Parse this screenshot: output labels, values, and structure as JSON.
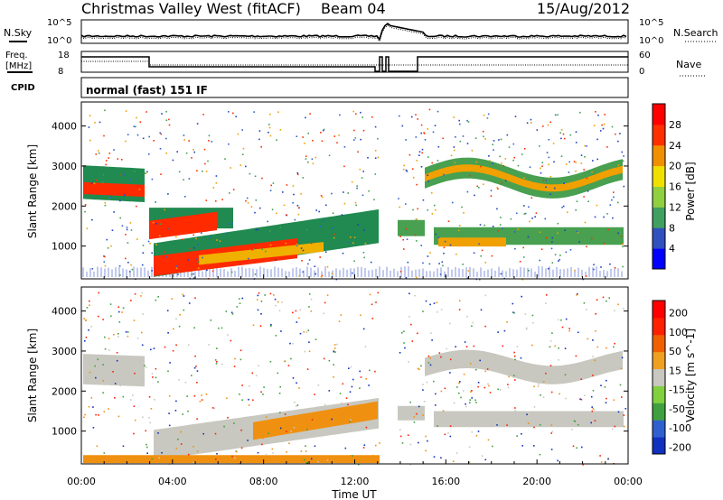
{
  "header": {
    "station": "Christmas Valley West (fitACF)",
    "beam": "Beam 04",
    "date": "15/Aug/2012"
  },
  "strips": {
    "nsky_label": "N.Sky",
    "nsearch_label": "N.Search",
    "nsky_tick_top": "10^5",
    "nsky_tick_bottom": "10^0",
    "freq_label_1": "Freq.",
    "freq_label_2": "[MHz]",
    "freq_tick_top": "18",
    "freq_tick_bottom": "8",
    "nave_label": "Nave",
    "nave_tick_top": "60",
    "nave_tick_bottom": "0",
    "cpid_label": "CPID",
    "cpid_value": "normal (fast) 151 IF"
  },
  "colors": {
    "velocity_ground": "#c8c8c0",
    "velocity_neg": "#f09010",
    "power_high": "#ff2000",
    "power_mid": "#f0b000",
    "power_low": "#208040",
    "power_floor": "#2040c0"
  },
  "chart_data": [
    {
      "type": "heatmap",
      "panel": "power",
      "ylabel": "Slant Range [km]",
      "xlabel": "",
      "xlim": [
        "00:00",
        "00:00"
      ],
      "ylim": [
        180,
        4600
      ],
      "yticks": [
        "1000",
        "2000",
        "3000",
        "4000"
      ],
      "colorbar": {
        "label": "Power [dB]",
        "ticks": [
          "4",
          "8",
          "12",
          "16",
          "20",
          "24",
          "28"
        ],
        "colors": [
          "#0000ff",
          "#3050c0",
          "#40a060",
          "#90d040",
          "#f0e000",
          "#f09000",
          "#ff3000",
          "#ff0000"
        ]
      }
    },
    {
      "type": "heatmap",
      "panel": "velocity",
      "ylabel": "Slant Range [km]",
      "xlabel": "Time UT",
      "xlim": [
        "00:00",
        "00:00"
      ],
      "ylim": [
        180,
        4600
      ],
      "xticks": [
        "00:00",
        "04:00",
        "08:00",
        "12:00",
        "16:00",
        "20:00",
        "00:00"
      ],
      "yticks": [
        "1000",
        "2000",
        "3000",
        "4000"
      ],
      "colorbar": {
        "label": "Velocity [m s^-1]",
        "ticks": [
          "200",
          "100",
          "50",
          "15",
          "-15",
          "-50",
          "-100",
          "-200"
        ],
        "colors": [
          "#1030c0",
          "#3060d0",
          "#40a040",
          "#80d040",
          "#c8c8c0",
          "#f0a020",
          "#f06000",
          "#ff2000",
          "#ff0000"
        ]
      }
    }
  ]
}
